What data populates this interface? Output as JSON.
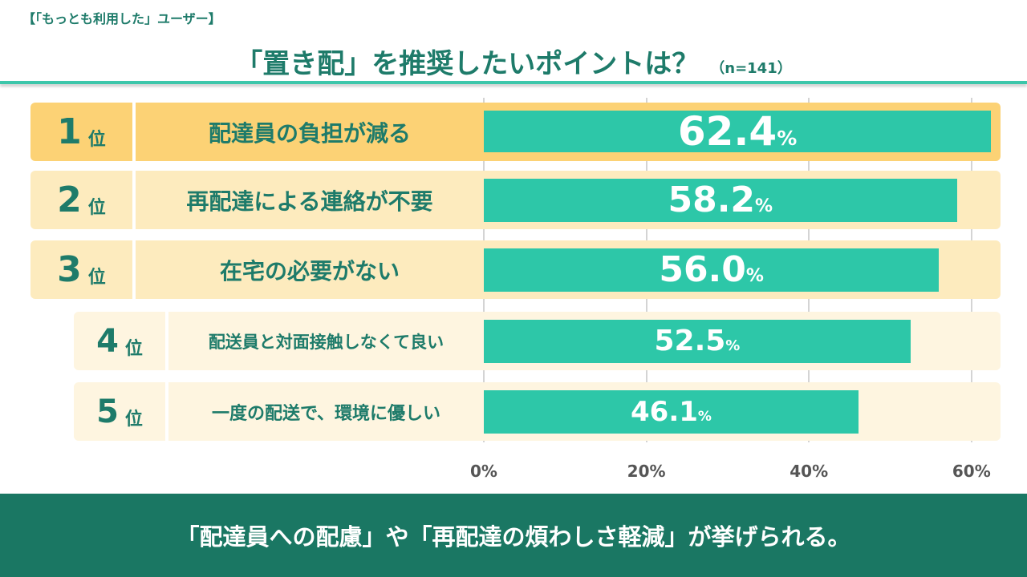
{
  "header": {
    "subtitle": "【「もっとも利用した」ユーザー】",
    "title": "「置き配」を推奨したいポイントは？",
    "n": "（n=141）"
  },
  "footer": {
    "text": "「配達員への配慮」や「再配達の煩わしさ軽減」が挙げられる。"
  },
  "colors": {
    "bar": "#2DC7A8",
    "rank1": "#FCD275",
    "rank2_3": "#FDEBBE",
    "rank4_5": "#FEF5E0",
    "text": "#1E7B6A",
    "footer": "#1A7763"
  },
  "chart_data": {
    "type": "bar",
    "orientation": "horizontal",
    "rank_suffix": "位",
    "categories": [
      "配達員の負担が減る",
      "再配達による連絡が不要",
      "在宅の必要がない",
      "配送員と対面接触しなくて良い",
      "一度の配送で、環境に優しい"
    ],
    "ranks": [
      "1",
      "2",
      "3",
      "4",
      "5"
    ],
    "values": [
      62.4,
      58.2,
      56.0,
      52.5,
      46.1
    ],
    "value_labels": [
      "62.4",
      "58.2",
      "56.0",
      "52.5",
      "46.1"
    ],
    "unit": "%",
    "xlim": [
      0,
      62
    ],
    "ticks": [
      "0%",
      "20%",
      "40%",
      "60%"
    ],
    "tick_values": [
      0,
      20,
      40,
      60
    ],
    "grid": true
  }
}
